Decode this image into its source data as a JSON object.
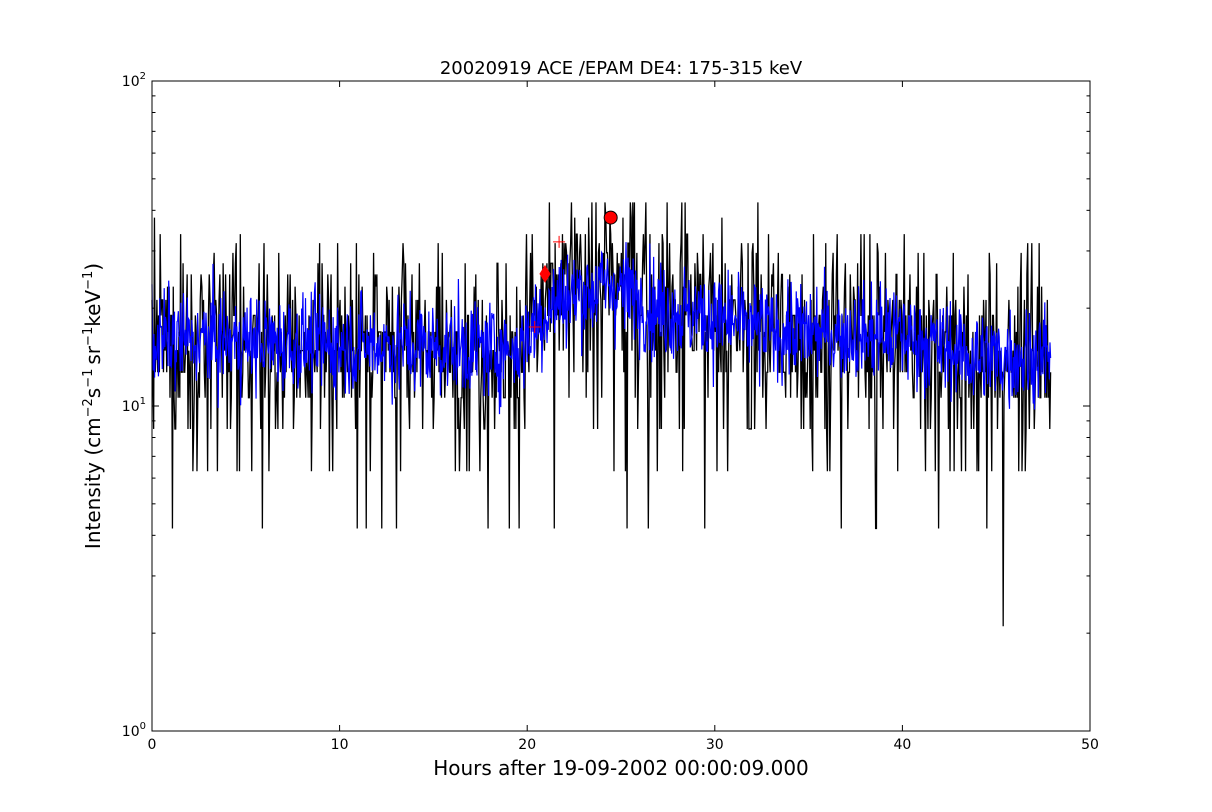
{
  "chart_data": {
    "type": "line",
    "title": "20020919 ACE /EPAM DE4: 175-315 keV",
    "xlabel": "Hours after 19-09-2002 00:00:09.000",
    "ylabel_parts": {
      "intensity": "Intensity (cm",
      "exp1": "−2",
      "s": "s",
      "exp2": "−1",
      "sr": "sr",
      "exp3": "−1",
      "kev": "keV",
      "exp4": "−1",
      "close": ")"
    },
    "xlim": [
      0,
      50
    ],
    "ylim": [
      1,
      100
    ],
    "yscale": "log",
    "x_ticks": [
      {
        "value": 0,
        "label": "0"
      },
      {
        "value": 10,
        "label": "10"
      },
      {
        "value": 20,
        "label": "20"
      },
      {
        "value": 30,
        "label": "30"
      },
      {
        "value": 40,
        "label": "40"
      },
      {
        "value": 50,
        "label": "50"
      }
    ],
    "y_ticks": [
      {
        "value": 1,
        "base": "10",
        "exp": "0"
      },
      {
        "value": 10,
        "base": "10",
        "exp": "1"
      },
      {
        "value": 100,
        "base": "10",
        "exp": "2"
      }
    ],
    "x_range": [
      0,
      47.9
    ],
    "raw_levels": [
      2.1,
      4.2,
      6.3,
      8.5,
      10.6,
      12.7,
      14.8,
      16.9,
      19.0,
      21.2,
      23.3,
      25.4,
      27.5,
      29.6,
      31.7,
      33.8,
      38.0,
      42.3
    ],
    "series": [
      {
        "color": "#000000",
        "style": "raw-counts",
        "profile": [
          {
            "x": 0,
            "y": 15.5
          },
          {
            "x": 10,
            "y": 15.0
          },
          {
            "x": 19.5,
            "y": 14.5
          },
          {
            "x": 21.5,
            "y": 22.0
          },
          {
            "x": 24.4,
            "y": 25.0
          },
          {
            "x": 27,
            "y": 20.5
          },
          {
            "x": 33,
            "y": 17.0
          },
          {
            "x": 40,
            "y": 16.5
          },
          {
            "x": 44,
            "y": 14.0
          },
          {
            "x": 47.9,
            "y": 14.5
          }
        ]
      },
      {
        "color": "#0000ff",
        "style": "smoothed",
        "profile": [
          {
            "x": 0,
            "y": 16.0
          },
          {
            "x": 10,
            "y": 15.5
          },
          {
            "x": 19.5,
            "y": 15.0
          },
          {
            "x": 21.5,
            "y": 21.0
          },
          {
            "x": 24.4,
            "y": 23.5
          },
          {
            "x": 27,
            "y": 20.0
          },
          {
            "x": 33,
            "y": 17.0
          },
          {
            "x": 40,
            "y": 16.5
          },
          {
            "x": 44,
            "y": 14.0
          },
          {
            "x": 47.9,
            "y": 14.5
          }
        ]
      }
    ],
    "markers": [
      {
        "shape": "circle",
        "x": 24.45,
        "y": 38.0,
        "color": "#ff0000"
      },
      {
        "shape": "diamond",
        "x": 20.95,
        "y": 25.5,
        "color": "#ff0000"
      },
      {
        "shape": "plus",
        "x": 20.4,
        "y": 17.5,
        "color": "#ff0000"
      },
      {
        "shape": "plus",
        "x": 21.7,
        "y": 32.0,
        "color": "#ff0000"
      }
    ]
  }
}
